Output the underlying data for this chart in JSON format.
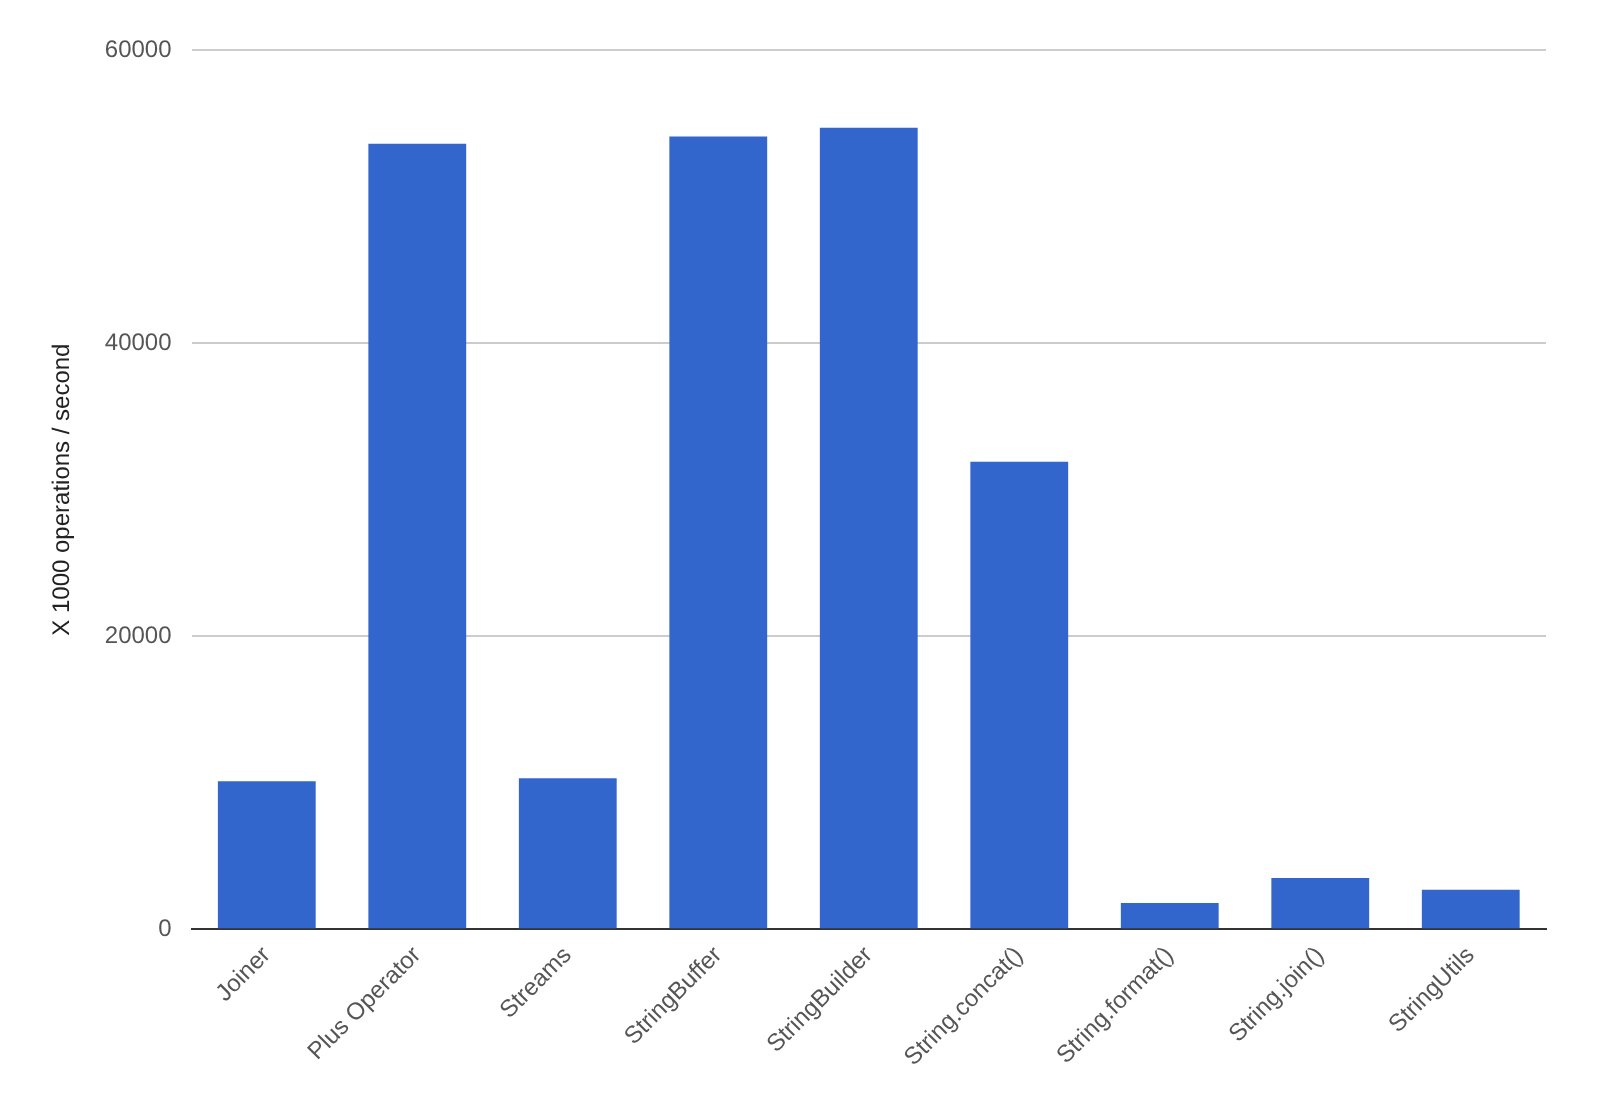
{
  "chart_data": {
    "type": "bar",
    "ylabel": "X 1000 operations / second",
    "categories": [
      "Joiner",
      "Plus Operator",
      "Streams",
      "StringBuffer",
      "StringBuilder",
      "String.concat()",
      "String.format()",
      "String.join()",
      "StringUtils"
    ],
    "values": [
      10100,
      53600,
      10300,
      54100,
      54700,
      31900,
      1800,
      3500,
      2700
    ],
    "color": "#3366cc",
    "ylim": [
      0,
      60000
    ],
    "yticks": [
      0,
      20000,
      40000,
      60000
    ],
    "grid": "y",
    "legend": false
  }
}
